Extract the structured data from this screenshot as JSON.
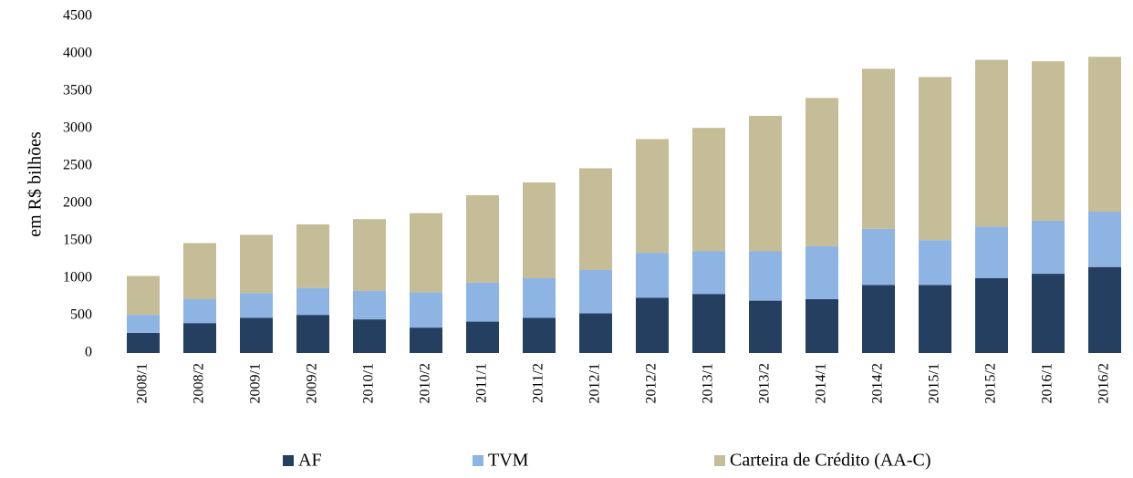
{
  "chart_data": {
    "type": "stacked-bar",
    "y_label": "em R$ bilhões",
    "categories": [
      "2008/1",
      "2008/2",
      "2009/1",
      "2009/2",
      "2010/1",
      "2010/2",
      "2011/1",
      "2011/2",
      "2012/1",
      "2012/2",
      "2013/1",
      "2013/2",
      "2014/1",
      "2014/2",
      "2015/1",
      "2015/2",
      "2016/1",
      "2016/2"
    ],
    "series": [
      {
        "name": "AF",
        "color": "#243f60",
        "values": [
          270,
          400,
          470,
          510,
          450,
          340,
          420,
          470,
          530,
          740,
          790,
          700,
          720,
          910,
          910,
          1000,
          1060,
          1150
        ]
      },
      {
        "name": "TVM",
        "color": "#8eb4e3",
        "values": [
          240,
          320,
          330,
          360,
          380,
          470,
          520,
          530,
          580,
          600,
          570,
          660,
          710,
          750,
          600,
          690,
          710,
          740
        ]
      },
      {
        "name": "Carteira de Crédito (AA-C)",
        "color": "#c4bd97",
        "values": [
          520,
          750,
          780,
          850,
          960,
          1060,
          1170,
          1280,
          1360,
          1520,
          1650,
          1810,
          1980,
          2140,
          2180,
          2230,
          2130,
          2070
        ]
      }
    ],
    "ylim": [
      0,
      4500
    ],
    "yticks": [
      0,
      500,
      1000,
      1500,
      2000,
      2500,
      3000,
      3500,
      4000,
      4500
    ],
    "grid": false,
    "legend": "bottom"
  }
}
